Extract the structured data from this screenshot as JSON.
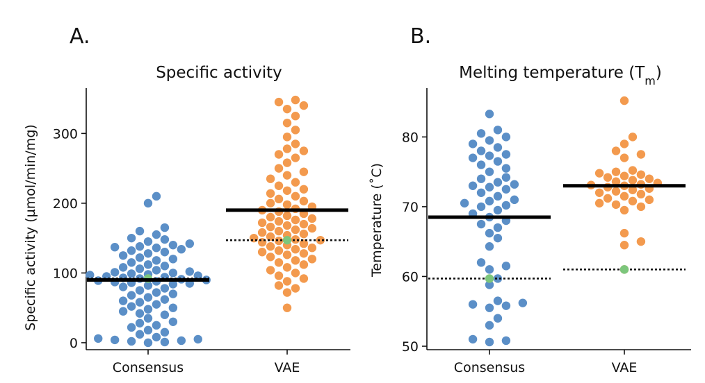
{
  "figure": {
    "panel_labels": [
      "A.",
      "B."
    ]
  },
  "colors": {
    "consensus": "#5b8fc7",
    "vae": "#f39a4e",
    "highlight": "#7cc67c",
    "mean_line": "#000000"
  },
  "chart_data": [
    {
      "type": "scatter",
      "style": "swarm",
      "panel": "A.",
      "title": "Specific activity",
      "xlabel": "",
      "ylabel": "Specific activity (µmol/min/mg)",
      "categories": [
        "Consensus",
        "VAE"
      ],
      "ylim": [
        -10,
        365
      ],
      "yticks": [
        0,
        100,
        200,
        300
      ],
      "grid": false,
      "mean_lines": [
        {
          "category": "Consensus",
          "value": 90
        },
        {
          "category": "VAE",
          "value": 190
        }
      ],
      "reference_lines": [
        {
          "category": "Consensus",
          "value": 92
        },
        {
          "category": "VAE",
          "value": 147
        }
      ],
      "highlight_points": [
        {
          "category": "Consensus",
          "value": 92
        },
        {
          "category": "VAE",
          "value": 147
        }
      ],
      "series": [
        {
          "category": "Consensus",
          "values": [
            0,
            1,
            2,
            3,
            4,
            5,
            6,
            8,
            12,
            15,
            18,
            22,
            25,
            28,
            30,
            35,
            40,
            42,
            45,
            48,
            50,
            52,
            55,
            58,
            60,
            62,
            65,
            68,
            70,
            72,
            75,
            78,
            80,
            82,
            84,
            85,
            86,
            87,
            88,
            89,
            90,
            91,
            92,
            93,
            94,
            95,
            96,
            97,
            98,
            99,
            100,
            101,
            102,
            104,
            106,
            108,
            110,
            112,
            115,
            118,
            120,
            122,
            125,
            128,
            130,
            132,
            134,
            136,
            137,
            138,
            140,
            142,
            145,
            148,
            150,
            155,
            160,
            165,
            200,
            210
          ]
        },
        {
          "category": "VAE",
          "values": [
            50,
            72,
            78,
            82,
            88,
            92,
            96,
            100,
            104,
            108,
            112,
            115,
            118,
            120,
            123,
            126,
            128,
            130,
            132,
            134,
            136,
            138,
            140,
            142,
            144,
            146,
            147,
            148,
            150,
            152,
            154,
            156,
            158,
            160,
            162,
            164,
            166,
            168,
            170,
            172,
            174,
            176,
            178,
            180,
            182,
            185,
            188,
            190,
            192,
            195,
            198,
            200,
            203,
            206,
            210,
            214,
            218,
            220,
            225,
            230,
            235,
            240,
            245,
            250,
            258,
            265,
            270,
            275,
            278,
            285,
            295,
            305,
            315,
            325,
            335,
            340,
            345,
            348
          ]
        }
      ]
    },
    {
      "type": "scatter",
      "style": "swarm",
      "panel": "B.",
      "title": "Melting temperature (Tm)",
      "xlabel": "",
      "ylabel": "Temperature (˚C)",
      "categories": [
        "Consensus",
        "VAE"
      ],
      "ylim": [
        49.5,
        87
      ],
      "yticks": [
        50,
        60,
        70,
        80
      ],
      "grid": false,
      "mean_lines": [
        {
          "category": "Consensus",
          "value": 68.5
        },
        {
          "category": "VAE",
          "value": 73
        }
      ],
      "reference_lines": [
        {
          "category": "Consensus",
          "value": 59.7
        },
        {
          "category": "VAE",
          "value": 61
        }
      ],
      "highlight_points": [
        {
          "category": "Consensus",
          "value": 59.7
        },
        {
          "category": "VAE",
          "value": 61
        }
      ],
      "series": [
        {
          "category": "Consensus",
          "values": [
            50.6,
            50.8,
            51.0,
            53.0,
            54.0,
            55.5,
            55.8,
            56.0,
            56.2,
            56.5,
            58.8,
            59.7,
            61.0,
            61.5,
            62.0,
            64.3,
            65.5,
            66.2,
            67.0,
            67.5,
            68.0,
            68.5,
            69.0,
            69.5,
            70.0,
            70.2,
            70.5,
            70.8,
            71.0,
            71.5,
            72.0,
            72.5,
            72.8,
            73.0,
            73.2,
            73.5,
            74.0,
            74.2,
            75.0,
            75.5,
            76.0,
            76.5,
            77.0,
            77.3,
            77.5,
            78.0,
            78.5,
            79.0,
            79.5,
            80.0,
            80.5,
            81.0,
            83.3
          ]
        },
        {
          "category": "VAE",
          "values": [
            61.0,
            64.5,
            65.0,
            66.2,
            69.5,
            70.0,
            70.3,
            70.5,
            70.8,
            71.0,
            71.2,
            71.5,
            71.8,
            72.0,
            72.2,
            72.4,
            72.6,
            72.8,
            73.0,
            73.1,
            73.2,
            73.4,
            73.6,
            73.8,
            74.0,
            74.2,
            74.4,
            74.6,
            74.8,
            75.0,
            75.2,
            77.0,
            77.5,
            78.0,
            79.0,
            80.0,
            85.2
          ]
        }
      ]
    }
  ]
}
